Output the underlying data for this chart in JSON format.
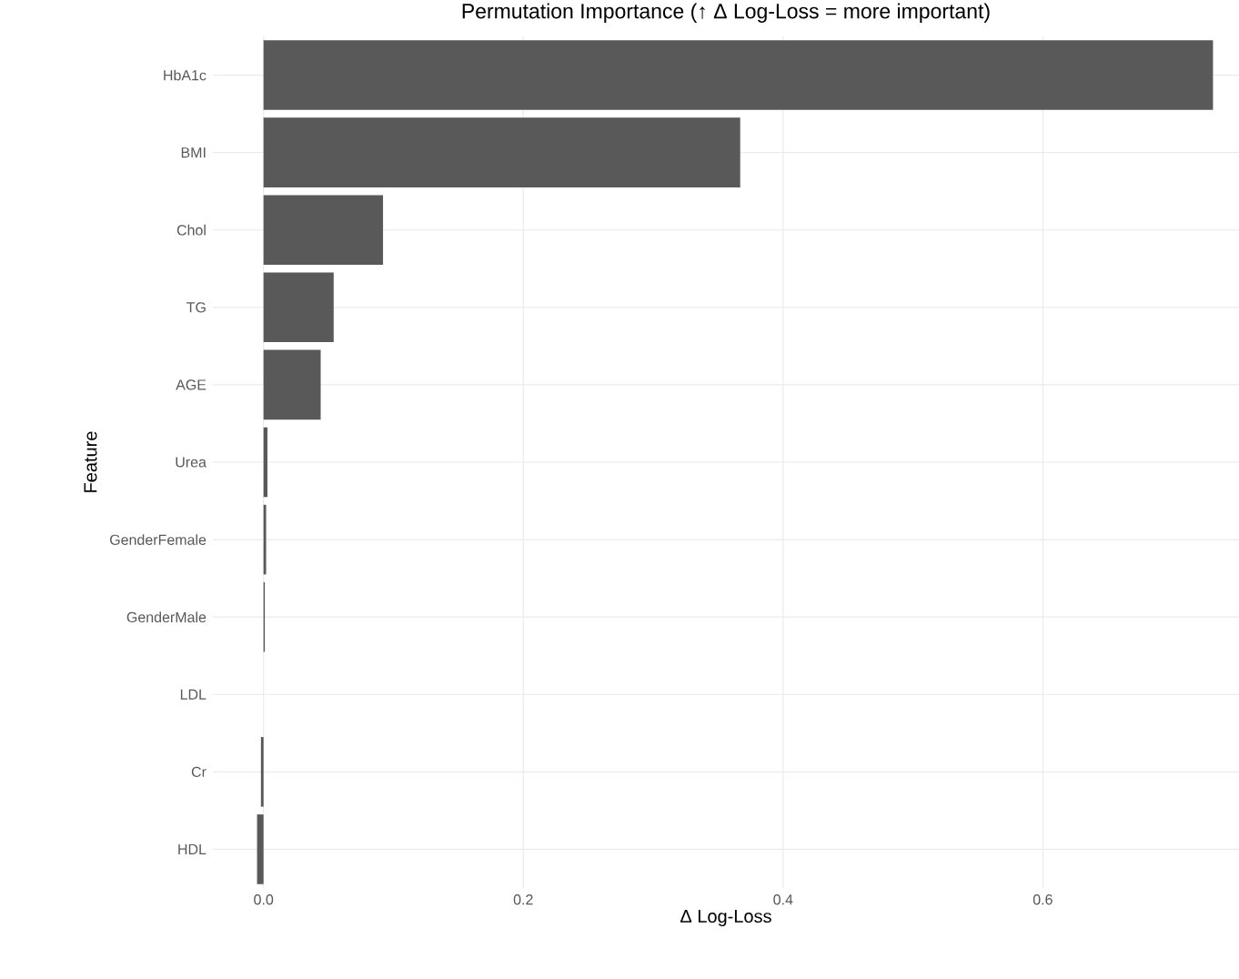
{
  "chart_data": {
    "type": "bar",
    "orientation": "horizontal",
    "title": "Permutation Importance (↑ Δ Log-Loss = more important)",
    "xlabel": "Δ Log-Loss",
    "ylabel": "Feature",
    "categories": [
      "HbA1c",
      "BMI",
      "Chol",
      "TG",
      "AGE",
      "Urea",
      "GenderFemale",
      "GenderMale",
      "LDL",
      "Cr",
      "HDL"
    ],
    "values": [
      0.731,
      0.367,
      0.092,
      0.054,
      0.044,
      0.003,
      0.002,
      0.001,
      0.0,
      -0.002,
      -0.005
    ],
    "color": "#595959",
    "xlim": [
      -0.039,
      0.751
    ],
    "xticks": [
      {
        "value": 0,
        "label": "0.0"
      },
      0.2,
      0.4,
      0.6
    ],
    "grid": true
  }
}
